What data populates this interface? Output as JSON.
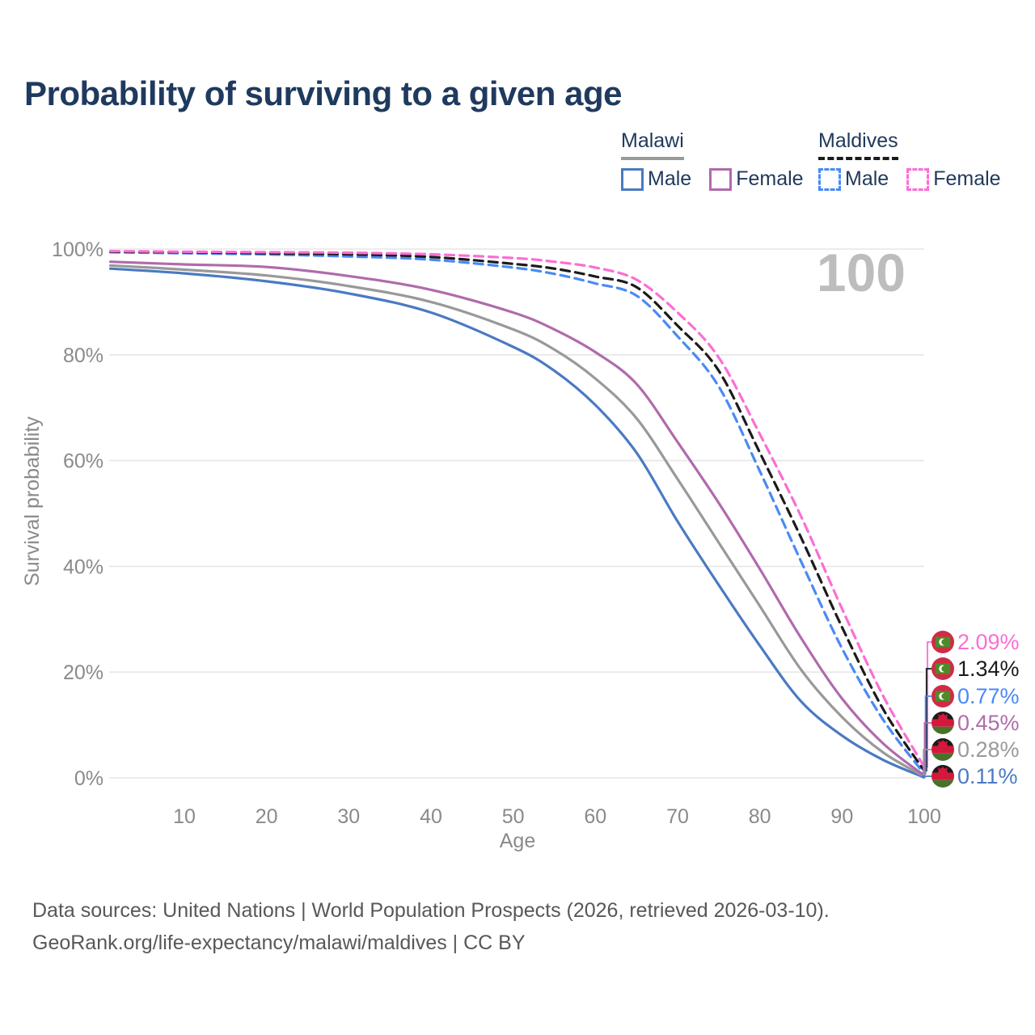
{
  "title": "Probability of surviving to a given age",
  "legend": {
    "groups": [
      {
        "title": "Malawi",
        "line_style": "solid",
        "items": [
          {
            "label": "Male"
          },
          {
            "label": "Female"
          }
        ]
      },
      {
        "title": "Maldives",
        "line_style": "dashed",
        "items": [
          {
            "label": "Male"
          },
          {
            "label": "Female"
          }
        ]
      }
    ]
  },
  "chart_data": {
    "type": "line",
    "title": "Probability of surviving to a given age",
    "xlabel": "Age",
    "ylabel": "Survival probability",
    "watermark": "100",
    "grid": true,
    "legend_position": "top-right",
    "xlim": [
      1,
      100
    ],
    "ylim": [
      0,
      100
    ],
    "x_ticks": [
      10,
      20,
      30,
      40,
      50,
      60,
      70,
      80,
      90,
      100
    ],
    "y_ticks": [
      {
        "value": 0,
        "label": "0%"
      },
      {
        "value": 20,
        "label": "20%"
      },
      {
        "value": 40,
        "label": "40%"
      },
      {
        "value": 60,
        "label": "60%"
      },
      {
        "value": 80,
        "label": "80%"
      },
      {
        "value": 100,
        "label": "100%"
      }
    ],
    "x": [
      1,
      10,
      20,
      30,
      40,
      50,
      55,
      60,
      65,
      70,
      75,
      80,
      85,
      90,
      95,
      100
    ],
    "series": [
      {
        "name": "Maldives Female",
        "color": "#fb6ed4",
        "dash": true,
        "flag": "maldives",
        "end_label": "2.09%",
        "values": [
          99.6,
          99.5,
          99.4,
          99.3,
          99.0,
          98.3,
          97.6,
          96.5,
          94.2,
          88.0,
          79.5,
          65.0,
          49.5,
          32.0,
          15.5,
          2.09
        ]
      },
      {
        "name": "Maldives Both sexes",
        "color": "#1b1b1b",
        "dash": true,
        "flag": "maldives",
        "end_label": "1.34%",
        "values": [
          99.5,
          99.4,
          99.2,
          99.0,
          98.5,
          97.2,
          96.3,
          94.8,
          92.8,
          85.5,
          77.0,
          61.5,
          45.5,
          28.5,
          13.0,
          1.34
        ]
      },
      {
        "name": "Maldives Male",
        "color": "#4a8af4",
        "dash": true,
        "flag": "maldives",
        "end_label": "0.77%",
        "values": [
          99.4,
          99.2,
          99.0,
          98.6,
          98.0,
          96.5,
          95.3,
          93.5,
          91.2,
          83.5,
          74.0,
          58.0,
          41.0,
          24.5,
          11.0,
          0.77
        ]
      },
      {
        "name": "Malawi Female",
        "color": "#b06bac",
        "dash": false,
        "flag": "malawi",
        "end_label": "0.45%",
        "values": [
          97.6,
          97.1,
          96.6,
          94.9,
          92.3,
          88.0,
          84.8,
          80.5,
          74.5,
          63.5,
          52.0,
          39.5,
          26.5,
          15.0,
          6.5,
          0.45
        ]
      },
      {
        "name": "Malawi Both sexes",
        "color": "#999999",
        "dash": false,
        "flag": "malawi",
        "end_label": "0.28%",
        "values": [
          96.9,
          96.1,
          95.0,
          93.0,
          90.0,
          84.8,
          81.0,
          75.5,
          68.0,
          56.5,
          44.5,
          32.5,
          20.5,
          11.5,
          4.8,
          0.28
        ]
      },
      {
        "name": "Malawi Male",
        "color": "#4a7ac2",
        "dash": false,
        "flag": "malawi",
        "end_label": "0.11%",
        "values": [
          96.3,
          95.4,
          93.9,
          91.6,
          88.0,
          81.5,
          77.0,
          70.5,
          61.5,
          48.5,
          36.5,
          25.0,
          14.5,
          8.0,
          3.4,
          0.11
        ]
      }
    ],
    "flag_colors": {
      "maldives": {
        "red": "#d12a47",
        "green": "#4f8a28",
        "crescent": "#ffffff"
      },
      "malawi": {
        "black": "#1b1b1b",
        "red": "#d3183c",
        "green": "#47722b",
        "sun": "#d3183c"
      }
    },
    "axis_color": "#8a8a8a",
    "grid_color": "#e6e6e6",
    "watermark_color": "#bdbdbd"
  },
  "footer": {
    "line1": "Data sources: United Nations | World Population Prospects (2026, retrieved 2026-03-10).",
    "line2": "GeoRank.org/life-expectancy/malawi/maldives | CC BY"
  }
}
